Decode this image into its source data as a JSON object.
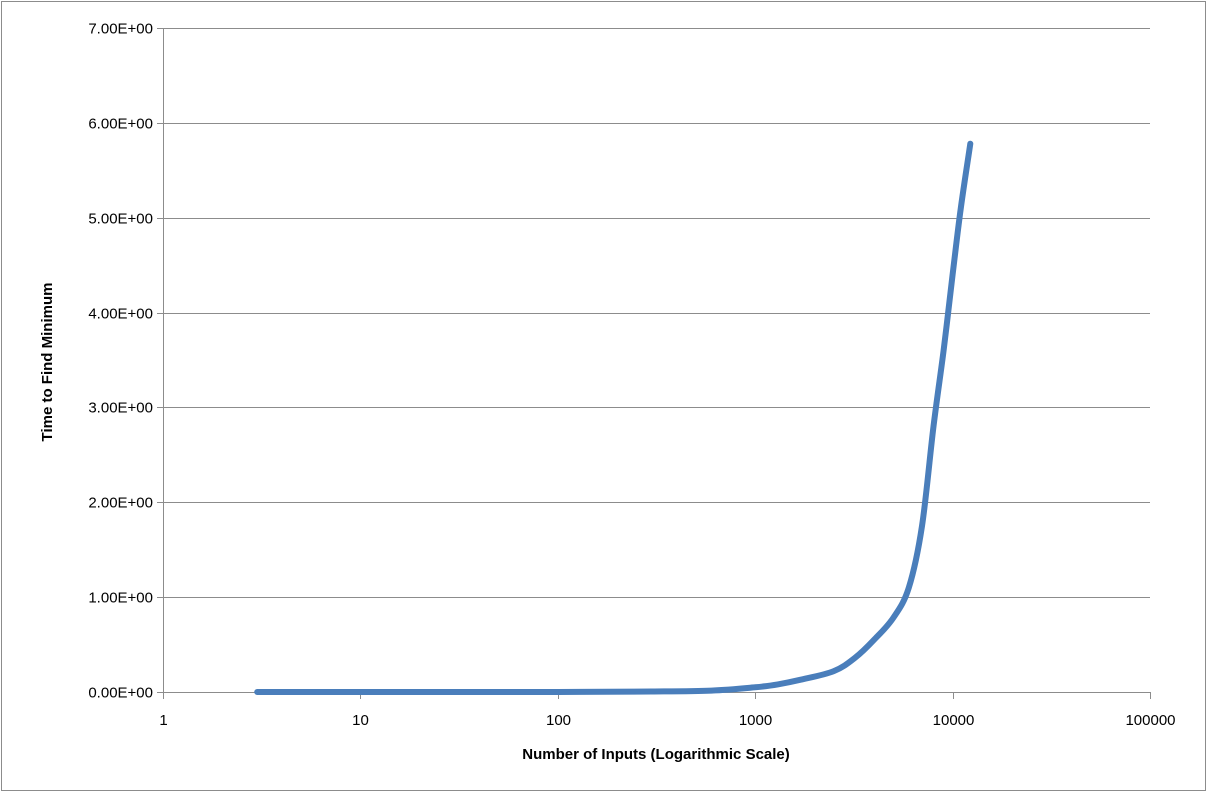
{
  "chart_data": {
    "type": "line",
    "title": "",
    "xlabel": "Number of Inputs (Logarithmic Scale)",
    "ylabel": "Time to Find Minimum",
    "x_scale": "log",
    "xlim": [
      1,
      100000
    ],
    "ylim": [
      0,
      7
    ],
    "x_ticks": [
      1,
      10,
      100,
      1000,
      10000,
      100000
    ],
    "x_tick_labels": [
      "1",
      "10",
      "100",
      "1000",
      "10000",
      "100000"
    ],
    "y_ticks": [
      0,
      1,
      2,
      3,
      4,
      5,
      6,
      7
    ],
    "y_tick_labels": [
      "0.00E+00",
      "1.00E+00",
      "2.00E+00",
      "3.00E+00",
      "4.00E+00",
      "5.00E+00",
      "6.00E+00",
      "7.00E+00"
    ],
    "grid": "horizontal",
    "legend": "none",
    "series": [
      {
        "color": "#4a7ebb",
        "x": [
          3,
          10,
          30,
          100,
          300,
          600,
          1000,
          1300,
          1700,
          2500,
          3200,
          4000,
          5000,
          6000,
          7000,
          8000,
          9000,
          10000,
          11000,
          12300
        ],
        "y": [
          0.0,
          0.0,
          0.0,
          0.0,
          0.005,
          0.015,
          0.05,
          0.08,
          0.13,
          0.22,
          0.36,
          0.55,
          0.78,
          1.1,
          1.75,
          2.8,
          3.6,
          4.4,
          5.1,
          5.78
        ]
      }
    ]
  }
}
